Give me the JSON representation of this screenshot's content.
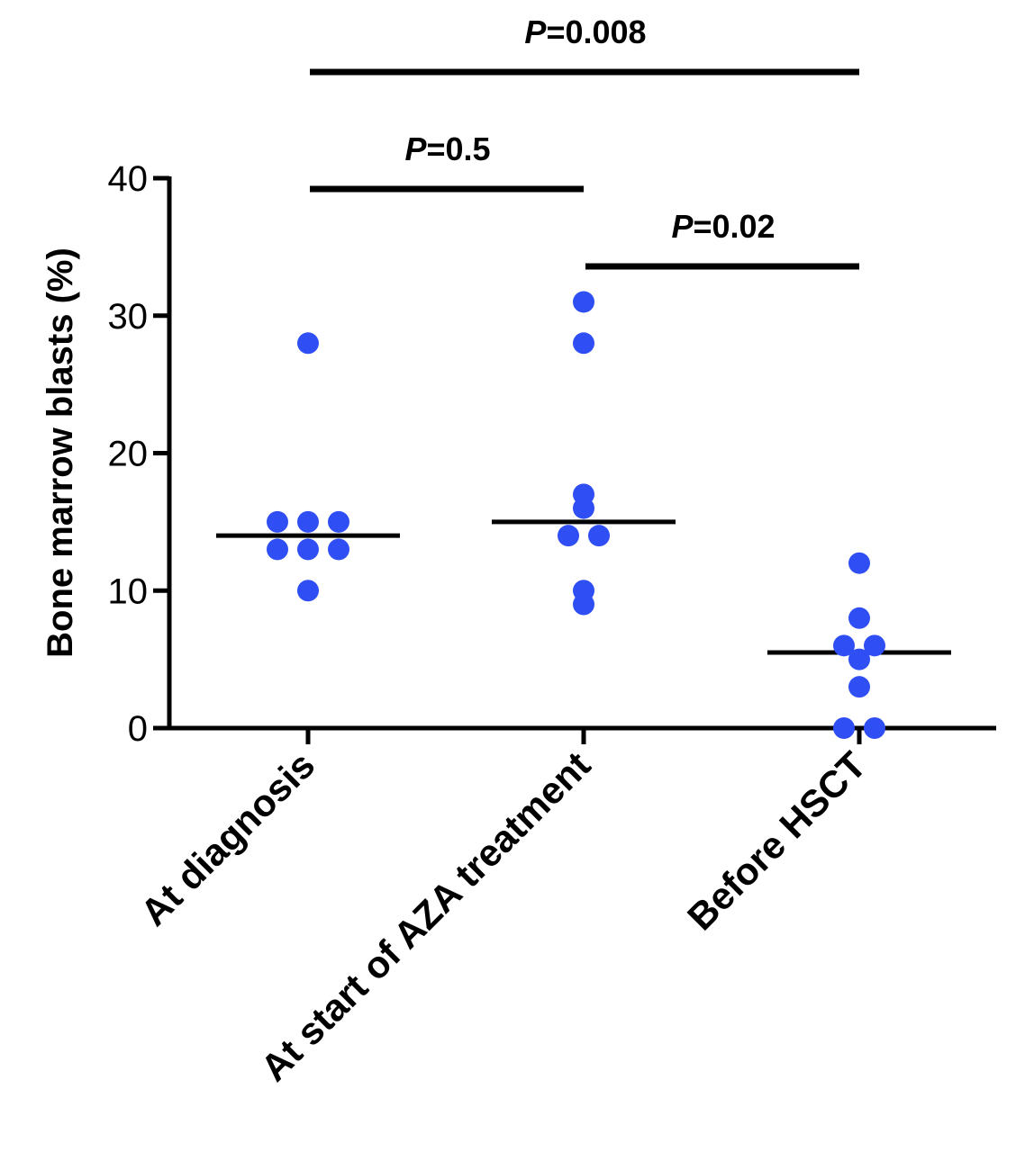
{
  "chart_data": {
    "type": "scatter",
    "title": "",
    "xlabel": "",
    "ylabel": "Bone marrow blasts (%)",
    "ylim": [
      0,
      40
    ],
    "yticks": [
      "0",
      "10",
      "20",
      "30",
      "40"
    ],
    "categories": [
      "At diagnosis",
      "At start of AZA treatment",
      "Before HSCT"
    ],
    "point_color": "#2f4ff5",
    "groups": [
      {
        "category": "At diagnosis",
        "values": [
          28,
          15,
          15,
          15,
          13,
          13,
          13,
          10
        ],
        "median": 14
      },
      {
        "category": "At start of AZA treatment",
        "values": [
          31,
          28,
          17,
          16,
          14,
          14,
          10,
          9
        ],
        "median": 15
      },
      {
        "category": "Before HSCT",
        "values": [
          12,
          8,
          6,
          6,
          5,
          3,
          0,
          0
        ],
        "median": 5.5
      }
    ],
    "comparisons": [
      {
        "from": "At diagnosis",
        "to": "Before HSCT",
        "p_prefix": "P",
        "p_value": "=0.008"
      },
      {
        "from": "At diagnosis",
        "to": "At start of AZA treatment",
        "p_prefix": "P",
        "p_value": "=0.5"
      },
      {
        "from": "At start of AZA treatment",
        "to": "Before HSCT",
        "p_prefix": "P",
        "p_value": "=0.02"
      }
    ],
    "grid": false,
    "legend": "none"
  }
}
